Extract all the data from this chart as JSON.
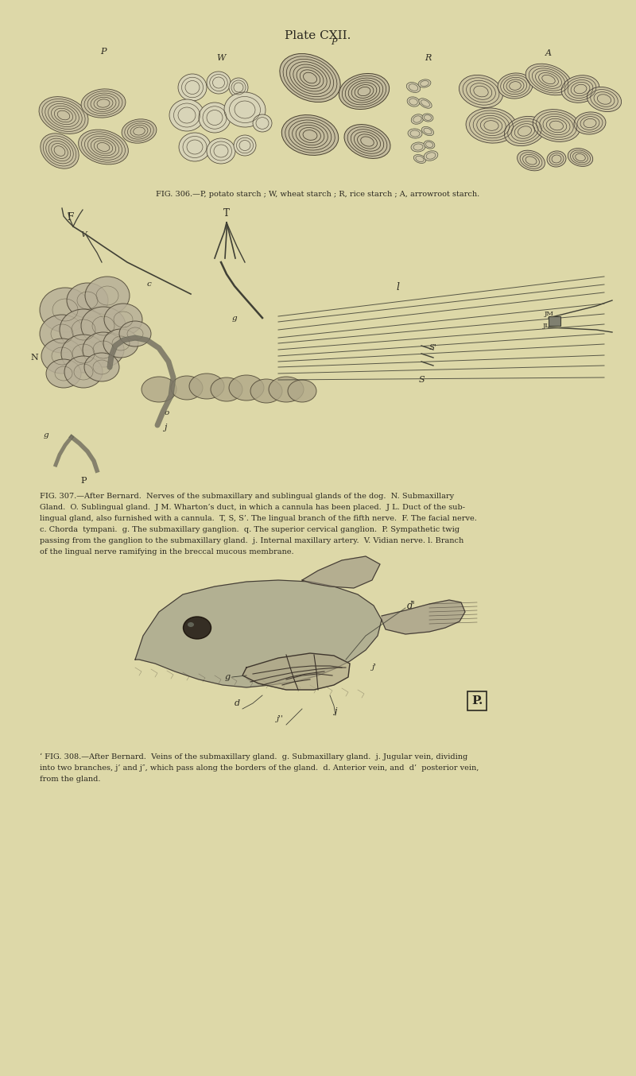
{
  "background_color": "#ddd8a8",
  "page_width": 8.0,
  "page_height": 13.54,
  "dpi": 100,
  "title": "Plate CXII.",
  "title_fontsize": 11,
  "fig306_caption": "FIG. 306.—P, potato starch ; W, wheat starch ; R, rice starch ; A, arrowroot starch.",
  "fig306_caption_fontsize": 7.0,
  "fig307_caption_lines": [
    "FIG. 307.—After Bernard.  Nerves of the submaxillary and sublingual glands of the dog.  N. Submaxillary",
    "Gland.  O. Sublingual gland.  J M. Wharton’s duct, in which a cannula has been placed.  J L. Duct of the sub-",
    "lingual gland, also furnished with a cannula.  T, S, S’. The lingual branch of the fifth nerve.  F. The facial nerve.",
    "c. Chorda  tympani.  g. The submaxillary ganglion.  q. The superior cervical ganglion.  P. Sympathetic twig",
    "passing from the ganglion to the submaxillary gland.  j. Internal maxillary artery.  V. Vidian nerve. l. Branch",
    "of the lingual nerve ramifying in the breccal mucous membrane."
  ],
  "fig307_caption_fontsize": 7.0,
  "fig308_caption_lines": [
    "‘ FIG. 308.—After Bernard.  Veins of the submaxillary gland.  g. Submaxillary gland.  j. Jugular vein, dividing",
    "into two branches, j’ and j″, which pass along the borders of the gland.  d. Anterior vein, and  d’  posterior vein,",
    "from the gland."
  ],
  "fig308_caption_fontsize": 7.0,
  "text_color": "#2a2820",
  "draw_color": "#555040",
  "granule_fill": "#c8c0a0",
  "granule_edge": "#504840"
}
